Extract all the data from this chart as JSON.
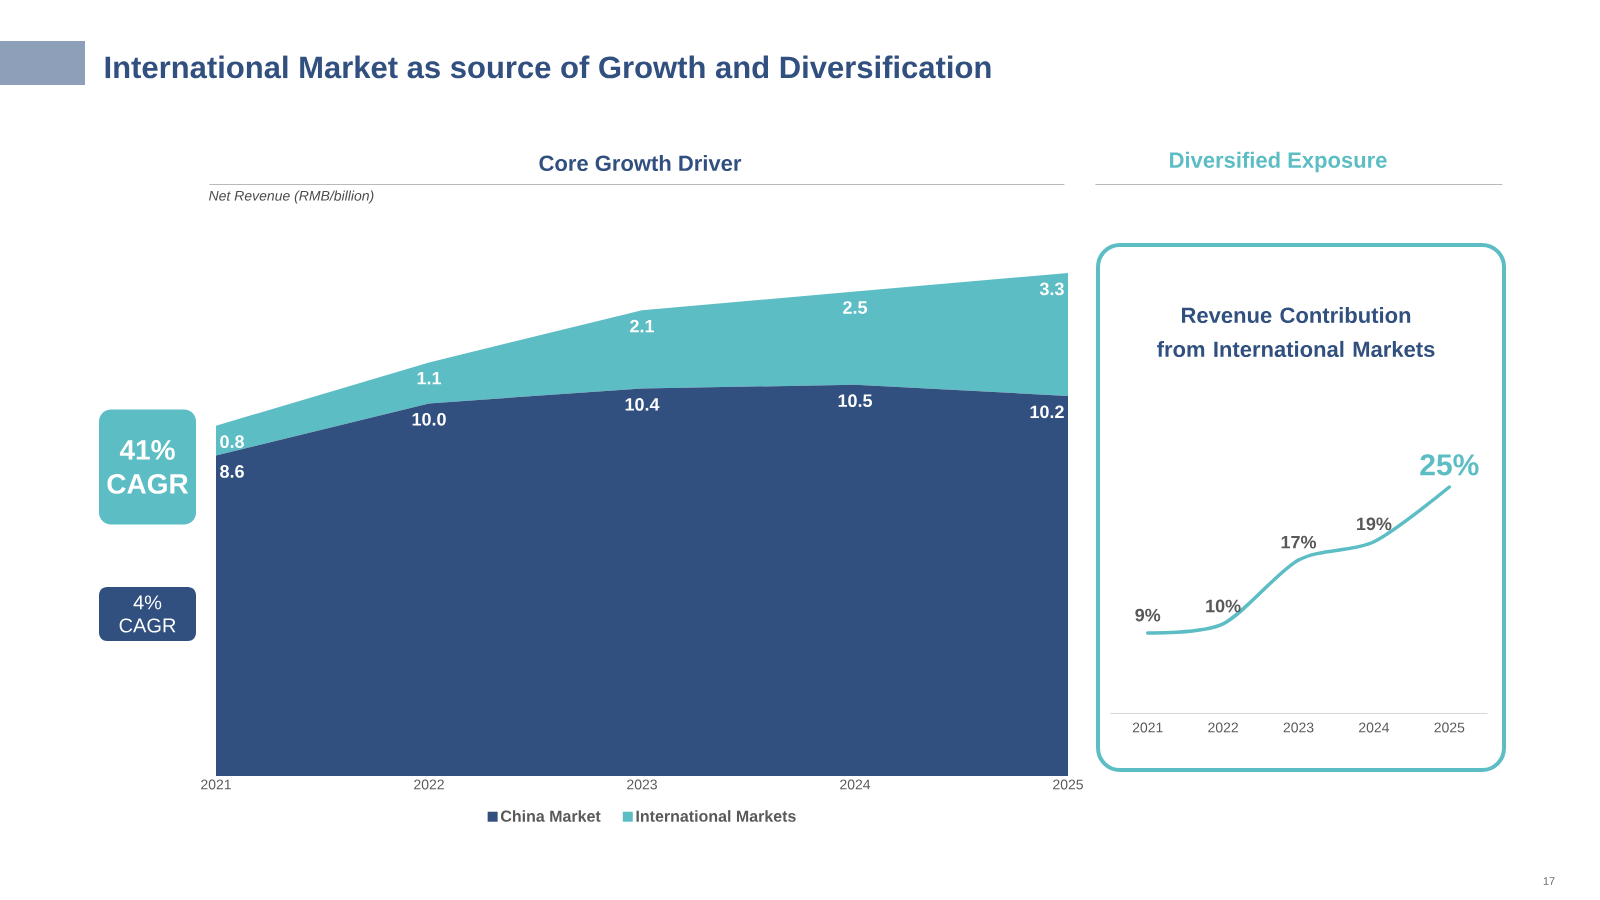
{
  "chart_data": [
    {
      "type": "area",
      "title": "Core Growth Driver",
      "ylabel": "Net Revenue (RMB/billion)",
      "categories": [
        "2021",
        "2022",
        "2023",
        "2024",
        "2025"
      ],
      "stacked": true,
      "legend": "bottom",
      "tick_labels": "x",
      "series": [
        {
          "name": "China Market",
          "color": "#31507f",
          "values": [
            8.6,
            10.0,
            10.4,
            10.5,
            10.2
          ],
          "value_labels": [
            "8.6",
            "10.0",
            "10.4",
            "10.5",
            "10.2"
          ]
        },
        {
          "name": "International Markets",
          "color": "#5dbdc4",
          "values": [
            0.8,
            1.1,
            2.1,
            2.5,
            3.3
          ],
          "value_labels": [
            "0.8",
            "1.1",
            "2.1",
            "2.5",
            "3.3"
          ]
        }
      ],
      "annotations": [
        "International Market as source of Growth and Diversification",
        "41% CAGR",
        "4% CAGR",
        "17"
      ]
    },
    {
      "type": "line",
      "title": "Diversified Exposure",
      "subtitle": "Revenue Contribution from International Markets",
      "categories": [
        "2021",
        "2022",
        "2023",
        "2024",
        "2025"
      ],
      "tick_labels": "x",
      "series": [
        {
          "color": "#5dbdc4",
          "values": [
            9,
            10,
            17,
            19,
            25
          ],
          "value_labels": [
            "9%",
            "10%",
            "17%",
            "19%",
            "25%"
          ]
        }
      ]
    }
  ]
}
